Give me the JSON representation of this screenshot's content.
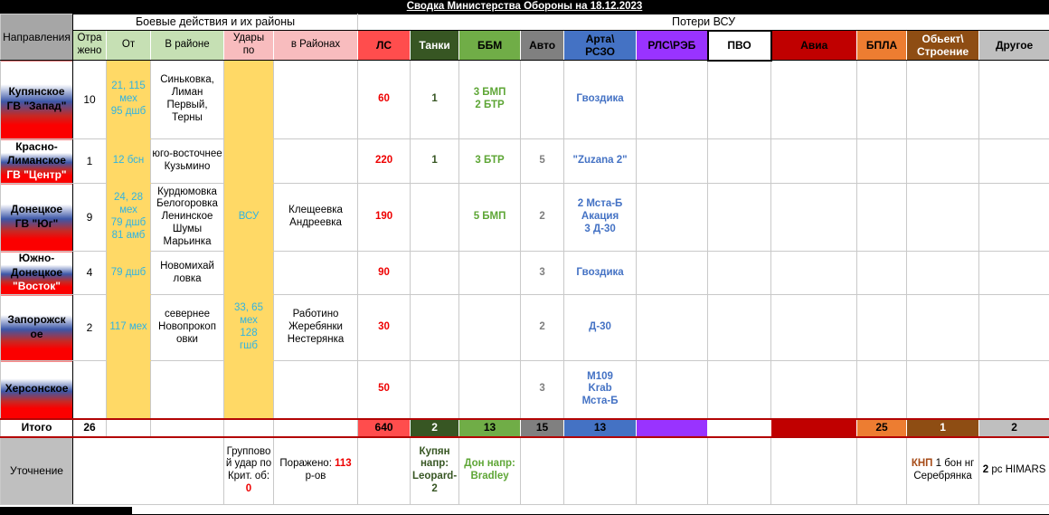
{
  "title": "Сводка Министерства Обороны на 18.12.2023",
  "palette": {
    "header_gray": "#A6A6A6",
    "header_green": "#C6E0B4",
    "header_pink": "#F8BCBE",
    "cell_yellow": "#FFD966",
    "text_cyan": "#2FB3E3",
    "text_red": "#EE0000",
    "ls_red": "#FF4D4D",
    "tank_dark_green": "#375623",
    "bbm_green": "#70AD47",
    "auto_gray": "#808080",
    "arta_blue": "#4472C4",
    "rls_purple": "#9933FF",
    "avia_dark_red": "#C00000",
    "bpla_orange": "#ED7D31",
    "object_brown": "#8E4D13",
    "other_gray": "#BFBFBF",
    "total_border_red": "#B30404",
    "flag_blue": "#3C57A8",
    "flag_red": "#FB0000"
  },
  "grid": {
    "col_keys": [
      "direction",
      "repelled",
      "from",
      "area",
      "strikes",
      "strike-areas",
      "ls",
      "tanks",
      "bbm",
      "auto",
      "arta",
      "rls-reb",
      "pvo",
      "avia",
      "bpla",
      "object",
      "other"
    ],
    "rows": [
      {
        "key": "header-group",
        "cells": [
          {
            "n": "col-header-directions",
            "t": "Направления",
            "c": "hgray wrap-hard",
            "rs": 2
          },
          {
            "n": "combat-group-header",
            "t": "Боевые действия и их районы",
            "c": "hwhite",
            "cs": 5
          },
          {
            "n": "losses-group-header",
            "t": "Потери ВСУ",
            "c": "hwhite",
            "cs": 11
          }
        ]
      },
      {
        "key": "header-cols",
        "cls": "hdr2",
        "start": 1,
        "cells": [
          {
            "t": "Отра\nжено",
            "c": "hgreen"
          },
          {
            "t": "От",
            "c": "hgreen"
          },
          {
            "t": "В районе",
            "c": "hgreen"
          },
          {
            "t": "Удары\nпо",
            "c": "hpink"
          },
          {
            "t": "в Районах",
            "c": "hpink"
          },
          {
            "t": "ЛС",
            "c": "h-ls"
          },
          {
            "t": "Танки",
            "c": "h-tank"
          },
          {
            "t": "ББМ",
            "c": "h-bbm"
          },
          {
            "t": "Авто",
            "c": "h-auto"
          },
          {
            "t": "Арта\\\nРСЗО",
            "c": "h-arta"
          },
          {
            "t": "РЛС\\РЭБ",
            "c": "h-rls"
          },
          {
            "t": "ПВО",
            "c": "h-pvo"
          },
          {
            "t": "Авиа",
            "c": "h-avia"
          },
          {
            "t": "БПЛА",
            "c": "h-bpla"
          },
          {
            "t": "Обьект\\\nСтроение",
            "c": "h-obj"
          },
          {
            "t": "Другое",
            "c": "h-other"
          }
        ]
      },
      {
        "key": "kupyansk",
        "cells": [
          {
            "n": "direction-kupyansk",
            "c": "flag",
            "lines": [
              {
                "t": "Купянское"
              },
              {
                "t": "ГВ \"Запад\""
              }
            ]
          },
          {
            "t": "10",
            "c": "v-rep"
          },
          {
            "t": "21, 115\nмех\n95 дшб",
            "c": "yellow cyan"
          },
          {
            "t": "Синьковка, Лиман Первый, Терны",
            "c": "area"
          },
          {
            "t": "",
            "c": "yellow"
          },
          {
            "t": "",
            "c": "area"
          },
          {
            "t": "60",
            "c": "v-ls"
          },
          {
            "t": "1",
            "c": "v-tank"
          },
          {
            "t": "3 БМП\n2 БТР",
            "c": "v-bbm"
          },
          {},
          {
            "t": "Гвоздика",
            "c": "v-arta"
          },
          {},
          {},
          {},
          {},
          {},
          {}
        ]
      },
      {
        "key": "krasno-liman",
        "cells": [
          {
            "n": "direction-krasno-liman",
            "c": "flag",
            "lines": [
              {
                "t": "Красно-"
              },
              {
                "t": "Лиманское"
              },
              {
                "t": "ГВ \"Центр\"",
                "w": 1
              }
            ]
          },
          {
            "t": "1",
            "c": "v-rep"
          },
          {
            "t": "12 бсн",
            "c": "yellow cyan"
          },
          {
            "t": "юго-восточнее Кузьмино",
            "c": "area"
          },
          {
            "t": "",
            "c": "yellow"
          },
          {
            "t": "",
            "c": "area"
          },
          {
            "t": "220",
            "c": "v-ls"
          },
          {
            "t": "1",
            "c": "v-tank"
          },
          {
            "t": "3 БТР",
            "c": "v-bbm"
          },
          {
            "t": "5",
            "c": "v-auto"
          },
          {
            "t": "\"Zuzana 2\"",
            "c": "v-arta"
          },
          {},
          {},
          {},
          {},
          {},
          {}
        ]
      },
      {
        "key": "donetsk",
        "cells": [
          {
            "n": "direction-donetsk",
            "c": "flag",
            "lines": [
              {
                "t": "Донецкое"
              },
              {
                "t": "ГВ \"Юг\""
              }
            ]
          },
          {
            "t": "9",
            "c": "v-rep"
          },
          {
            "t": "24, 28\nмех\n79 дшб\n81 амб",
            "c": "yellow cyan"
          },
          {
            "t": "Курдюмовка Белогоровка Ленинское Шумы Марьинка",
            "c": "area"
          },
          {
            "t": "ВСУ",
            "c": "yellow cyan"
          },
          {
            "t": "Клещеевка Андреевка",
            "c": "area"
          },
          {
            "t": "190",
            "c": "v-ls"
          },
          {},
          {
            "t": "5 БМП",
            "c": "v-bbm"
          },
          {
            "t": "2",
            "c": "v-auto"
          },
          {
            "t": "2 Мста-Б\nАкация\n3 Д-30",
            "c": "v-arta"
          },
          {},
          {},
          {},
          {},
          {},
          {}
        ]
      },
      {
        "key": "yuzhno-donetsk",
        "cells": [
          {
            "n": "direction-yuzhno-donetsk",
            "c": "flag",
            "lines": [
              {
                "t": "Южно-"
              },
              {
                "t": "Донецкое"
              },
              {
                "t": "\"Восток\"",
                "w": 1
              }
            ]
          },
          {
            "t": "4",
            "c": "v-rep"
          },
          {
            "t": "79 дшб",
            "c": "yellow cyan"
          },
          {
            "t": "Новомихай\nловка",
            "c": "area"
          },
          {
            "t": "",
            "c": "yellow"
          },
          {
            "t": "",
            "c": "area"
          },
          {
            "t": "90",
            "c": "v-ls"
          },
          {},
          {},
          {
            "t": "3",
            "c": "v-auto"
          },
          {
            "t": "Гвоздика",
            "c": "v-arta"
          },
          {},
          {},
          {},
          {},
          {},
          {}
        ]
      },
      {
        "key": "zaporozhye",
        "cells": [
          {
            "n": "direction-zaporozhye",
            "c": "flag",
            "lines": [
              {
                "t": "Запорожск"
              },
              {
                "t": "ое"
              }
            ]
          },
          {
            "t": "2",
            "c": "v-rep"
          },
          {
            "t": "117 мех",
            "c": "yellow cyan"
          },
          {
            "t": "севернее\nНовопрокоп\nовки",
            "c": "area"
          },
          {
            "t": "33, 65\nмех\n128\nгшб",
            "c": "yellow cyan"
          },
          {
            "t": "Работино Жеребянки Нестерянка",
            "c": "area"
          },
          {
            "t": "30",
            "c": "v-ls"
          },
          {},
          {},
          {
            "t": "2",
            "c": "v-auto"
          },
          {
            "t": "Д-30",
            "c": "v-arta"
          },
          {},
          {},
          {},
          {},
          {},
          {}
        ]
      },
      {
        "key": "kherson",
        "cells": [
          {
            "n": "direction-kherson",
            "c": "flag",
            "lines": [
              {
                "t": "Херсонское"
              }
            ]
          },
          {
            "t": "",
            "c": "v-rep"
          },
          {
            "t": "",
            "c": "yellow"
          },
          {
            "t": "",
            "c": "area"
          },
          {
            "t": "",
            "c": "yellow"
          },
          {
            "t": "",
            "c": "area"
          },
          {
            "t": "50",
            "c": "v-ls"
          },
          {},
          {},
          {
            "t": "3",
            "c": "v-auto"
          },
          {
            "t": "М109\nKrab\nМста-Б",
            "c": "v-arta"
          },
          {},
          {},
          {},
          {},
          {},
          {}
        ]
      },
      {
        "key": "total",
        "cls": "total",
        "cells": [
          {
            "n": "total-label",
            "t": "Итого",
            "c": "total-label"
          },
          {
            "t": "26",
            "c": "v-rep"
          },
          {},
          {},
          {},
          {},
          {
            "t": "640",
            "c": "t-ls t-sep"
          },
          {
            "t": "2",
            "c": "t-tank t-sep"
          },
          {
            "t": "13",
            "c": "t-bbm t-sep"
          },
          {
            "t": "15",
            "c": "t-auto t-sep"
          },
          {
            "t": "13",
            "c": "t-arta t-sep"
          },
          {
            "t": "",
            "c": "t-rls t-sep"
          },
          {
            "t": "",
            "c": "t-pvo t-sep"
          },
          {
            "t": "",
            "c": "t-avia t-sep"
          },
          {
            "t": "25",
            "c": "t-bpla t-sep"
          },
          {
            "t": "1",
            "c": "t-obj t-sep"
          },
          {
            "t": "2",
            "c": "t-other t-sep"
          }
        ]
      },
      {
        "key": "note",
        "cells": [
          {
            "n": "note-label",
            "t": "Уточнение",
            "c": "note-label"
          },
          {
            "t": "",
            "cs": 3
          },
          {
            "c": "note-cell wrap-hard",
            "seg": [
              {
                "t": "Групповой удар по Крит. об: "
              },
              {
                "t": "0",
                "c": "red",
                "b": 1
              }
            ]
          },
          {
            "c": "note-cell",
            "seg": [
              {
                "t": "Поражено: "
              },
              {
                "t": "113",
                "c": "red",
                "b": 1
              },
              {
                "t": " р-ов"
              }
            ]
          },
          {
            "t": "",
            "c": "bl"
          },
          {
            "c": "note-cell wrap-hard",
            "seg": [
              {
                "t": "Купян напр: Leopard-2",
                "c": "dgreen",
                "b": 1
              }
            ]
          },
          {
            "c": "note-cell",
            "seg": [
              {
                "t": "Дон напр: Bradley",
                "c": "green",
                "b": 1
              }
            ]
          },
          {},
          {},
          {},
          {},
          {},
          {},
          {
            "c": "note-cell",
            "seg": [
              {
                "t": "КНП",
                "c": "brown",
                "b": 1
              },
              {
                "t": " 1 бон нг Серебрянка"
              }
            ]
          },
          {
            "c": "note-cell",
            "seg": [
              {
                "t": "2",
                "b": 1
              },
              {
                "t": " рс HIMARS"
              }
            ]
          }
        ]
      }
    ]
  }
}
